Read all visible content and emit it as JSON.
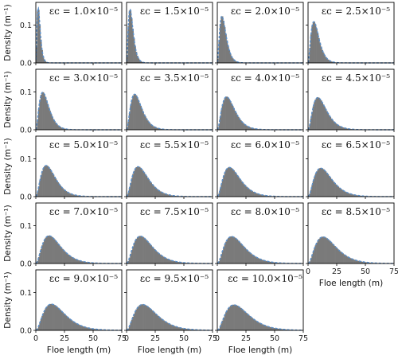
{
  "chart_data": {
    "type": "area",
    "layout": {
      "rows": 5,
      "cols": 4
    },
    "shared_x": true,
    "shared_y": true,
    "xlabel": "Floe length (m)",
    "ylabel": "Density (m⁻¹)",
    "xlim": [
      0,
      75
    ],
    "ylim": [
      0,
      0.16
    ],
    "xticks": [
      "0",
      "25",
      "50",
      "75"
    ],
    "yticks": [
      "0.0",
      "0.1"
    ],
    "colors": {
      "histogram": "#7a7a7a",
      "fit": "#5b8fc9"
    },
    "series_style": {
      "histogram": "filled grey bars",
      "fit": "dashed blue curve"
    },
    "panels": [
      {
        "label": "εc = 1.0×10⁻⁵",
        "mode": 2,
        "peak": 0.148
      },
      {
        "label": "εc = 1.5×10⁻⁵",
        "mode": 3,
        "peak": 0.143
      },
      {
        "label": "εc = 2.0×10⁻⁵",
        "mode": 4,
        "peak": 0.125
      },
      {
        "label": "εc = 2.5×10⁻⁵",
        "mode": 5,
        "peak": 0.11
      },
      {
        "label": "εc = 3.0×10⁻⁵",
        "mode": 6,
        "peak": 0.1
      },
      {
        "label": "εc = 3.5×10⁻⁵",
        "mode": 7,
        "peak": 0.095
      },
      {
        "label": "εc = 4.0×10⁻⁵",
        "mode": 8,
        "peak": 0.088
      },
      {
        "label": "εc = 4.5×10⁻⁵",
        "mode": 8.5,
        "peak": 0.086
      },
      {
        "label": "εc = 5.0×10⁻⁵",
        "mode": 9,
        "peak": 0.083
      },
      {
        "label": "εc = 5.5×10⁻⁵",
        "mode": 10,
        "peak": 0.08
      },
      {
        "label": "εc = 6.0×10⁻⁵",
        "mode": 10.5,
        "peak": 0.078
      },
      {
        "label": "εc = 6.5×10⁻⁵",
        "mode": 11,
        "peak": 0.076
      },
      {
        "label": "εc = 7.0×10⁻⁵",
        "mode": 11.5,
        "peak": 0.074
      },
      {
        "label": "εc = 7.5×10⁻⁵",
        "mode": 12,
        "peak": 0.073
      },
      {
        "label": "εc = 8.0×10⁻⁵",
        "mode": 12.5,
        "peak": 0.072
      },
      {
        "label": "εc = 8.5×10⁻⁵",
        "mode": 13,
        "peak": 0.071
      },
      {
        "label": "εc = 9.0×10⁻⁵",
        "mode": 13.5,
        "peak": 0.07
      },
      {
        "label": "εc = 9.5×10⁻⁵",
        "mode": 14,
        "peak": 0.069
      },
      {
        "label": "εc = 10.0×10⁻⁵",
        "mode": 14.5,
        "peak": 0.068
      }
    ]
  }
}
